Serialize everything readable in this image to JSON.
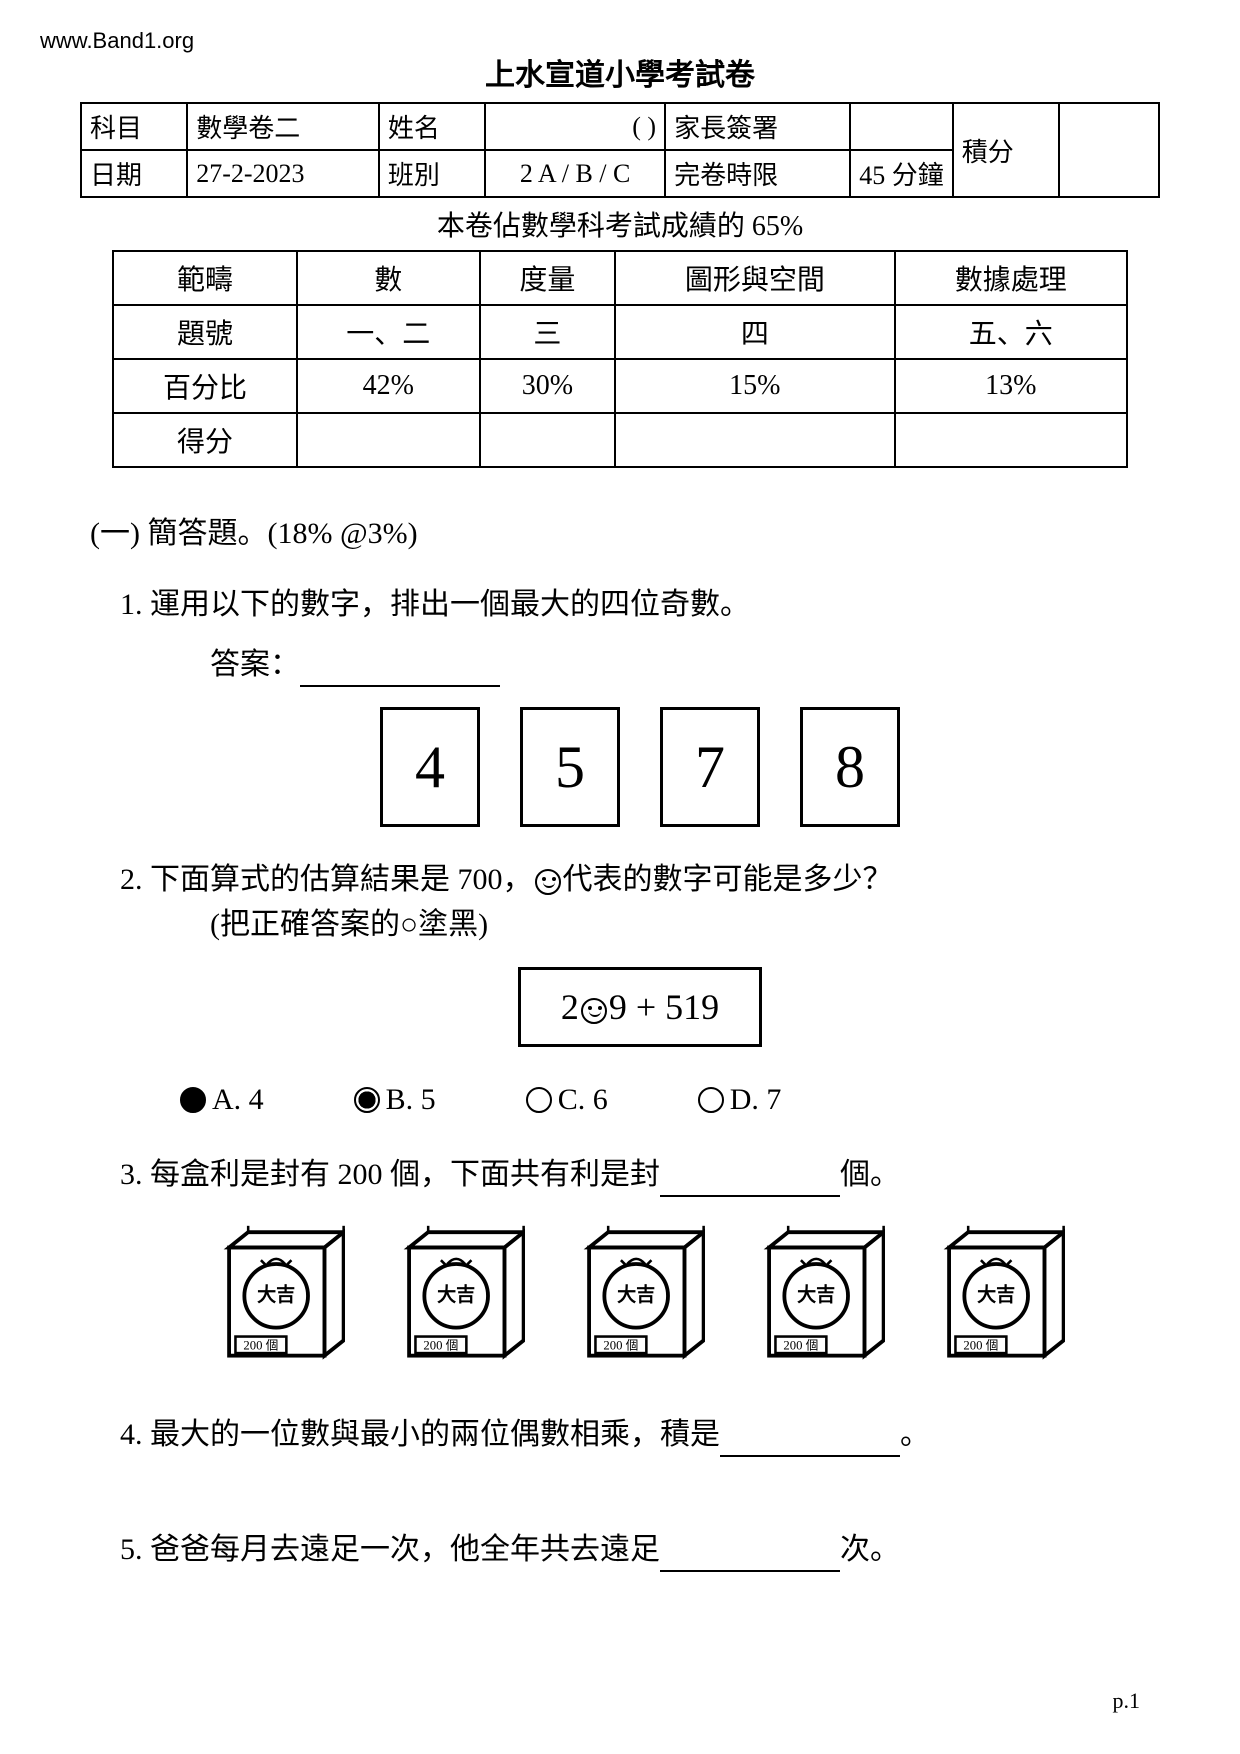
{
  "watermark": "www.Band1.org",
  "title": "上水宣道小學考試卷",
  "header": {
    "row1": {
      "subject_label": "科目",
      "subject_value": "數學卷二",
      "name_label": "姓名",
      "name_value": "(     )",
      "parent_label": "家長簽署",
      "score_label": "積分"
    },
    "row2": {
      "date_label": "日期",
      "date_value": "27-2-2023",
      "class_label": "班別",
      "class_value": "2 A / B / C",
      "limit_label": "完卷時限",
      "limit_value": "45 分鐘"
    }
  },
  "subtitle": "本卷佔數學科考試成績的 65%",
  "category_table": {
    "rows": [
      [
        "範疇",
        "數",
        "度量",
        "圖形與空間",
        "數據處理"
      ],
      [
        "題號",
        "一、二",
        "三",
        "四",
        "五、六"
      ],
      [
        "百分比",
        "42%",
        "30%",
        "15%",
        "13%"
      ],
      [
        "得分",
        "",
        "",
        "",
        ""
      ]
    ]
  },
  "section1_header": "(一) 簡答題。(18% @3%)",
  "q1": {
    "text": "1. 運用以下的數字，排出一個最大的四位奇數。",
    "answer_label": "答案：",
    "digits": [
      "4",
      "5",
      "7",
      "8"
    ]
  },
  "q2": {
    "line1_a": "2. 下面算式的估算結果是 700，",
    "line1_b": "代表的數字可能是多少？",
    "line2": "(把正確答案的○塗黑)",
    "equation_a": "2",
    "equation_b": "9 + 519",
    "choices": [
      {
        "label": "A. 4",
        "state": "filled"
      },
      {
        "label": "B. 5",
        "state": "partial"
      },
      {
        "label": "C. 6",
        "state": "empty"
      },
      {
        "label": "D. 7",
        "state": "empty"
      }
    ]
  },
  "q3": {
    "text_a": "3. 每盒利是封有 200 個，下面共有利是封",
    "text_b": "個。",
    "box_count": 5,
    "box_label_top": "大吉",
    "box_label_bottom": "200 個"
  },
  "q4": {
    "text_a": "4. 最大的一位數與最小的兩位偶數相乘，積是",
    "text_b": "。"
  },
  "q5": {
    "text_a": "5. 爸爸每月去遠足一次，他全年共去遠足",
    "text_b": "次。"
  },
  "page_num": "p.1"
}
